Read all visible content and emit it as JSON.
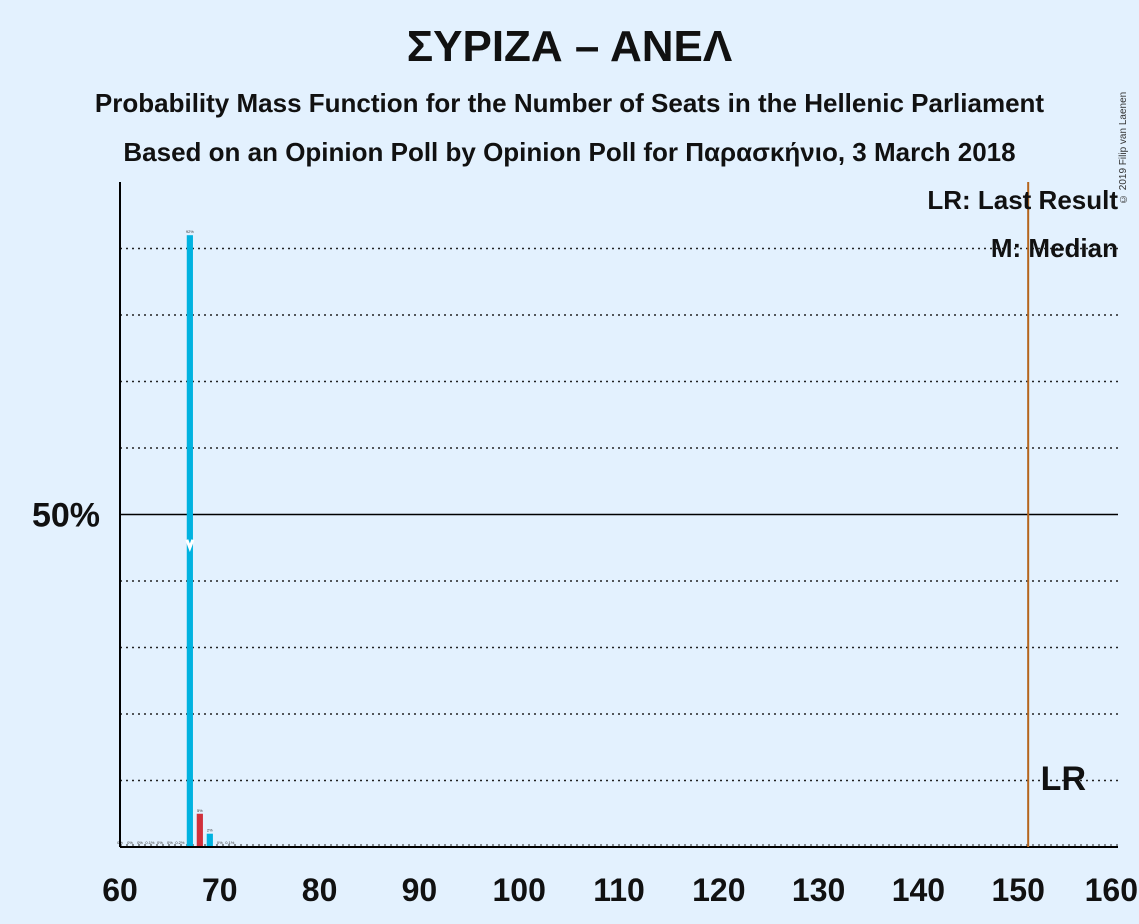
{
  "chart_data": {
    "type": "bar",
    "title": "ΣΥΡΙΖΑ – ΑΝΕΛ",
    "subtitle": "Probability Mass Function for the Number of Seats in the Hellenic Parliament",
    "subtitle2": "Based on an Opinion Poll by Opinion Poll for Παρασκήνιο, 3 March 2018",
    "copyright": "© 2019 Filip van Laenen",
    "xlim": [
      60,
      160
    ],
    "ylim": [
      0,
      100
    ],
    "x_ticks": [
      60,
      70,
      80,
      90,
      100,
      110,
      120,
      130,
      140,
      150,
      160
    ],
    "y_label_value": 50,
    "y_label": "50%",
    "gridlines": [
      10,
      20,
      30,
      40,
      60,
      70,
      80,
      90
    ],
    "bars": [
      {
        "x": 67,
        "value": 92,
        "label": "92%",
        "color": "#00b2e0"
      },
      {
        "x": 68,
        "value": 5,
        "label": "5%",
        "color": "#d0303b"
      },
      {
        "x": 69,
        "value": 2,
        "label": "2%",
        "color": "#00b2e0"
      }
    ],
    "small_labels": [
      {
        "x": 60,
        "label": "0%"
      },
      {
        "x": 61,
        "label": "0%"
      },
      {
        "x": 62,
        "label": "0%"
      },
      {
        "x": 63,
        "label": "0.1%"
      },
      {
        "x": 64,
        "label": "0%"
      },
      {
        "x": 65,
        "label": "0%"
      },
      {
        "x": 66,
        "label": "0.2%"
      },
      {
        "x": 70,
        "label": "0%"
      },
      {
        "x": 71,
        "label": "0.1%"
      }
    ],
    "median": {
      "x": 67,
      "value": 45
    },
    "last_result": {
      "x": 151,
      "label": "LR"
    },
    "legend": {
      "lr": "LR: Last Result",
      "median": "M: Median",
      "position": "top-right"
    }
  }
}
